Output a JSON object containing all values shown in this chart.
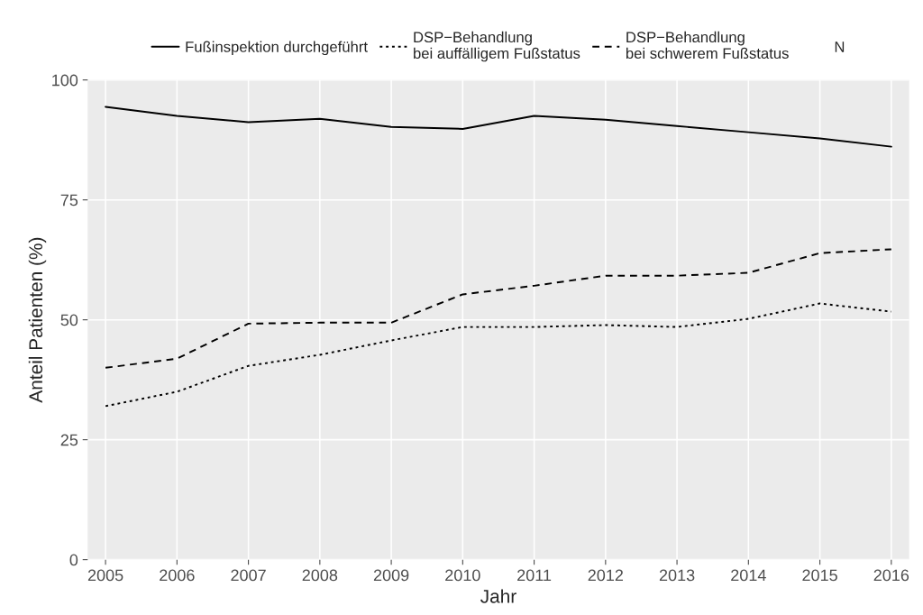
{
  "chart_data": {
    "type": "line",
    "xlabel": "Jahr",
    "ylabel": "Anteil Patienten (%)",
    "x": [
      2005,
      2006,
      2007,
      2008,
      2009,
      2010,
      2011,
      2012,
      2013,
      2014,
      2015,
      2016
    ],
    "series": [
      {
        "name": "Fußinspektion durchgeführt",
        "color": "#000000",
        "line_style": "solid",
        "values": [
          94.4,
          92.5,
          91.2,
          91.9,
          90.2,
          89.8,
          92.5,
          91.7,
          90.4,
          89.1,
          87.8,
          86.1
        ]
      },
      {
        "name": "DSP−Behandlung\nbei auffälligem Fußstatus",
        "color": "#000000",
        "line_style": "dotted",
        "values": [
          32.0,
          35.0,
          40.4,
          42.7,
          45.7,
          48.5,
          48.5,
          48.9,
          48.5,
          50.2,
          53.4,
          51.7
        ]
      },
      {
        "name": "DSP−Behandlung\nbei schwerem Fußstatus",
        "color": "#000000",
        "line_style": "dashed",
        "values": [
          40.0,
          41.9,
          49.2,
          49.4,
          49.4,
          55.3,
          57.1,
          59.2,
          59.2,
          59.8,
          63.9,
          64.7
        ]
      },
      {
        "name": "N",
        "color": "#000000",
        "line_style": "none",
        "values": [
          null,
          null,
          null,
          null,
          null,
          null,
          null,
          null,
          null,
          null,
          null,
          null
        ]
      }
    ],
    "xlim": [
      2004.75,
      2016.25
    ],
    "xticks": [
      2005,
      2006,
      2007,
      2008,
      2009,
      2010,
      2011,
      2012,
      2013,
      2014,
      2015,
      2016
    ],
    "ylim": [
      0,
      100
    ],
    "yticks": [
      0,
      25,
      50,
      75,
      100
    ],
    "grid": true,
    "legend": "top"
  }
}
